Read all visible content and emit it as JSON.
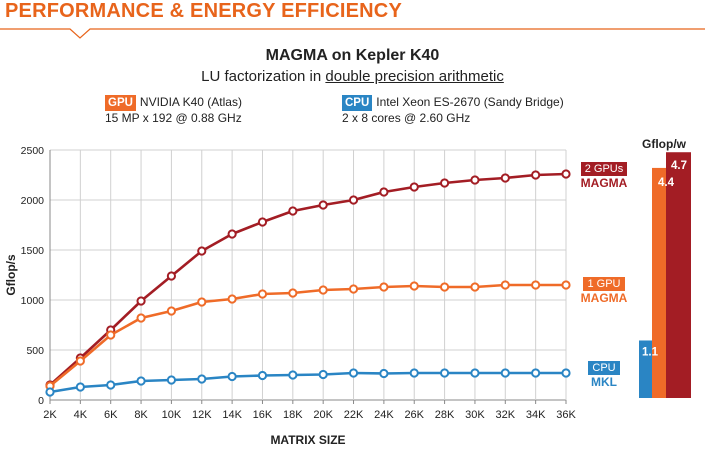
{
  "header": {
    "title": "PERFORMANCE & ENERGY EFFICIENCY"
  },
  "subtitle": {
    "prefix": "LU factorization in ",
    "emphasis": "double precision arithmetic"
  },
  "gpu_spec": {
    "badge": "GPU",
    "line1": "NVIDIA K40 (Atlas)",
    "line2": "15 MP x 192 @ 0.88 GHz"
  },
  "cpu_spec": {
    "badge": "CPU",
    "line1": "Intel Xeon ES-2670 (Sandy Bridge)",
    "line2": "2 x 8 cores @ 2.60 GHz"
  },
  "series_labels": {
    "magma2": {
      "chip": "2 GPUs",
      "name": "MAGMA"
    },
    "magma1": {
      "chip": "1 GPU",
      "name": "MAGMA"
    },
    "mkl": {
      "chip": "CPU",
      "name": "MKL"
    }
  },
  "colors": {
    "header": "#e8641b",
    "magma2": "#a31d24",
    "magma1": "#ef6b28",
    "mkl": "#2a85c4",
    "grid": "#d0d0d0"
  },
  "chart_data": [
    {
      "type": "line",
      "title": "MAGMA on Kepler K40",
      "xlabel": "MATRIX SIZE",
      "ylabel": "Gflop/s",
      "categories": [
        "2K",
        "4K",
        "6K",
        "8K",
        "10K",
        "12K",
        "14K",
        "16K",
        "18K",
        "20K",
        "22K",
        "24K",
        "26K",
        "28K",
        "30K",
        "32K",
        "34K",
        "36K"
      ],
      "ylim": [
        0,
        2500
      ],
      "yticks": [
        0,
        500,
        1000,
        1500,
        2000,
        2500
      ],
      "grid": true,
      "series": [
        {
          "key": "magma2",
          "values": [
            150,
            420,
            700,
            990,
            1240,
            1490,
            1660,
            1780,
            1890,
            1950,
            2000,
            2080,
            2130,
            2170,
            2200,
            2220,
            2250,
            2260
          ]
        },
        {
          "key": "magma1",
          "values": [
            140,
            390,
            650,
            820,
            890,
            980,
            1010,
            1060,
            1070,
            1100,
            1110,
            1130,
            1140,
            1130,
            1130,
            1150,
            1150,
            1150
          ]
        },
        {
          "key": "mkl",
          "values": [
            80,
            130,
            150,
            190,
            200,
            210,
            235,
            245,
            250,
            255,
            270,
            265,
            270,
            270,
            270,
            270,
            270,
            270
          ]
        }
      ]
    },
    {
      "type": "bar",
      "ylabel": "Gflop/w",
      "categories": [
        "CPU",
        "1 GPU",
        "2 GPUs"
      ],
      "values": [
        1.1,
        4.4,
        4.7
      ],
      "value_labels": [
        "1.1",
        "4.4",
        "4.7"
      ]
    }
  ]
}
